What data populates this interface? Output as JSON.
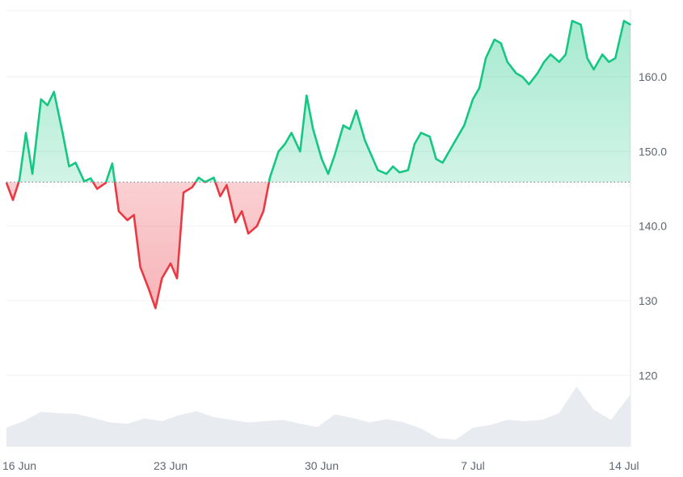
{
  "chart_data": {
    "type": "area",
    "baseline": 145.9,
    "ylim": [
      110.5,
      169
    ],
    "y_ticks": [
      {
        "value": 160,
        "label": "160.0"
      },
      {
        "value": 150,
        "label": "150.0"
      },
      {
        "value": 140,
        "label": "140.0"
      },
      {
        "value": 130,
        "label": "130"
      },
      {
        "value": 120,
        "label": "120"
      }
    ],
    "x_ticks": [
      {
        "x": 1,
        "label": "16 Jun"
      },
      {
        "x": 8,
        "label": "23 Jun"
      },
      {
        "x": 15,
        "label": "30 Jun"
      },
      {
        "x": 22,
        "label": "7 Jul"
      },
      {
        "x": 29,
        "label": "14 Jul"
      }
    ],
    "grid": true,
    "colors": {
      "up": "#16c784",
      "down": "#ea3943",
      "up_fill": "#d5f3e5",
      "down_fill": "#fbd5d7",
      "volume": "#e8ecf0",
      "baseline": "#8a8f98"
    },
    "series": [
      {
        "x": [
          0.4,
          0.7,
          1.0,
          1.3,
          1.6,
          2.0,
          2.3,
          2.6,
          3.0,
          3.3,
          3.6,
          4.0,
          4.3,
          4.6,
          5.0,
          5.3,
          5.6,
          6.0,
          6.3,
          6.6,
          7.0,
          7.3,
          7.6,
          8.0,
          8.3,
          8.6,
          9.0,
          9.3,
          9.6,
          10.0,
          10.3,
          10.6,
          11.0,
          11.3,
          11.6,
          12.0,
          12.3,
          12.6,
          13.0,
          13.3,
          13.6,
          14.0,
          14.3,
          14.6,
          15.0,
          15.3,
          15.6,
          16.0,
          16.3,
          16.6,
          17.0,
          17.3,
          17.6,
          18.0,
          18.3,
          18.6,
          19.0,
          19.3,
          19.6,
          20.0,
          20.3,
          20.6,
          21.0,
          21.3,
          21.6,
          22.0,
          22.3,
          22.6,
          23.0,
          23.3,
          23.6,
          24.0,
          24.3,
          24.6,
          25.0,
          25.3,
          25.6,
          26.0,
          26.3,
          26.6,
          27.0,
          27.3,
          27.6,
          28.0,
          28.3,
          28.6,
          29.0,
          29.3
        ],
        "values": [
          145.8,
          143.5,
          146.2,
          152.5,
          147.0,
          157.0,
          156.2,
          158.0,
          152.5,
          148.0,
          148.5,
          146.0,
          146.4,
          145.0,
          145.8,
          148.4,
          142.0,
          140.8,
          141.5,
          134.5,
          131.5,
          129.0,
          133.0,
          135.0,
          133.0,
          144.5,
          145.2,
          146.5,
          145.9,
          146.5,
          144.0,
          145.5,
          140.5,
          142.0,
          139.0,
          140.0,
          142.0,
          146.5,
          150.0,
          151.0,
          152.5,
          150.0,
          157.5,
          153.0,
          149.0,
          147.0,
          149.5,
          153.5,
          153.0,
          155.5,
          151.5,
          149.5,
          147.5,
          147.0,
          148.0,
          147.2,
          147.5,
          151.0,
          152.5,
          152.0,
          149.0,
          148.5,
          150.5,
          152.0,
          153.5,
          157.0,
          158.5,
          162.5,
          165.0,
          164.5,
          162.0,
          160.5,
          160.0,
          159.0,
          160.5,
          162.0,
          163.0,
          162.0,
          163.0,
          167.5,
          167.0,
          162.5,
          161.0,
          163.0,
          162.0,
          162.5,
          167.5,
          167.0
        ]
      }
    ],
    "volume": {
      "x": [
        0.4,
        1.2,
        2.0,
        2.8,
        3.6,
        4.4,
        5.2,
        6.0,
        6.8,
        7.6,
        8.4,
        9.2,
        10.0,
        10.8,
        11.6,
        12.4,
        13.2,
        14.0,
        14.8,
        15.6,
        16.4,
        17.2,
        18.0,
        18.8,
        19.6,
        20.4,
        21.2,
        22.0,
        22.8,
        23.6,
        24.4,
        25.2,
        26.0,
        26.8,
        27.6,
        28.4,
        29.3
      ],
      "values": [
        0.28,
        0.38,
        0.52,
        0.5,
        0.49,
        0.43,
        0.36,
        0.34,
        0.42,
        0.38,
        0.47,
        0.53,
        0.44,
        0.4,
        0.36,
        0.38,
        0.4,
        0.34,
        0.29,
        0.48,
        0.43,
        0.36,
        0.41,
        0.36,
        0.27,
        0.12,
        0.1,
        0.28,
        0.32,
        0.4,
        0.38,
        0.4,
        0.5,
        0.9,
        0.55,
        0.4,
        0.78
      ]
    }
  }
}
